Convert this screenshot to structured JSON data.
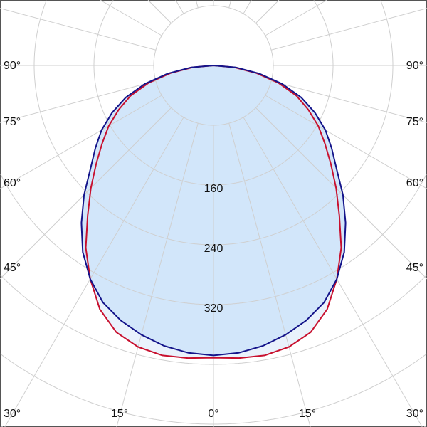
{
  "chart_data": {
    "type": "polar",
    "title": "",
    "radial_ticks": [
      80,
      160,
      240,
      320,
      400,
      480,
      560,
      640,
      720
    ],
    "radial_tick_labels": [
      "160",
      "240",
      "320"
    ],
    "angle_step_deg": 15,
    "angle_labels": {
      "left": [
        "90°",
        "75°",
        "60°",
        "45°",
        "30°"
      ],
      "right": [
        "90°",
        "75°",
        "60°",
        "45°",
        "30°"
      ],
      "bottom": [
        "15°",
        "0°",
        "15°"
      ]
    },
    "grid": true,
    "angles_deg": [
      0,
      5,
      10,
      15,
      20,
      25,
      30,
      35,
      40,
      45,
      50,
      55,
      60,
      65,
      70,
      75,
      80,
      85,
      90
    ],
    "series": [
      {
        "color": "#c8102e",
        "fill": "#e9f2fc",
        "values": [
          391,
          393,
          394,
          390,
          380,
          360,
          330,
          298,
          262,
          232,
          205,
          182,
          162,
          140,
          118,
          90,
          58,
          28,
          0
        ]
      },
      {
        "color": "#14148a",
        "fill": "#d2e6fa",
        "values": [
          388,
          386,
          381,
          373,
          363,
          350,
          330,
          305,
          275,
          245,
          215,
          193,
          173,
          150,
          125,
          95,
          62,
          30,
          0
        ]
      }
    ]
  }
}
